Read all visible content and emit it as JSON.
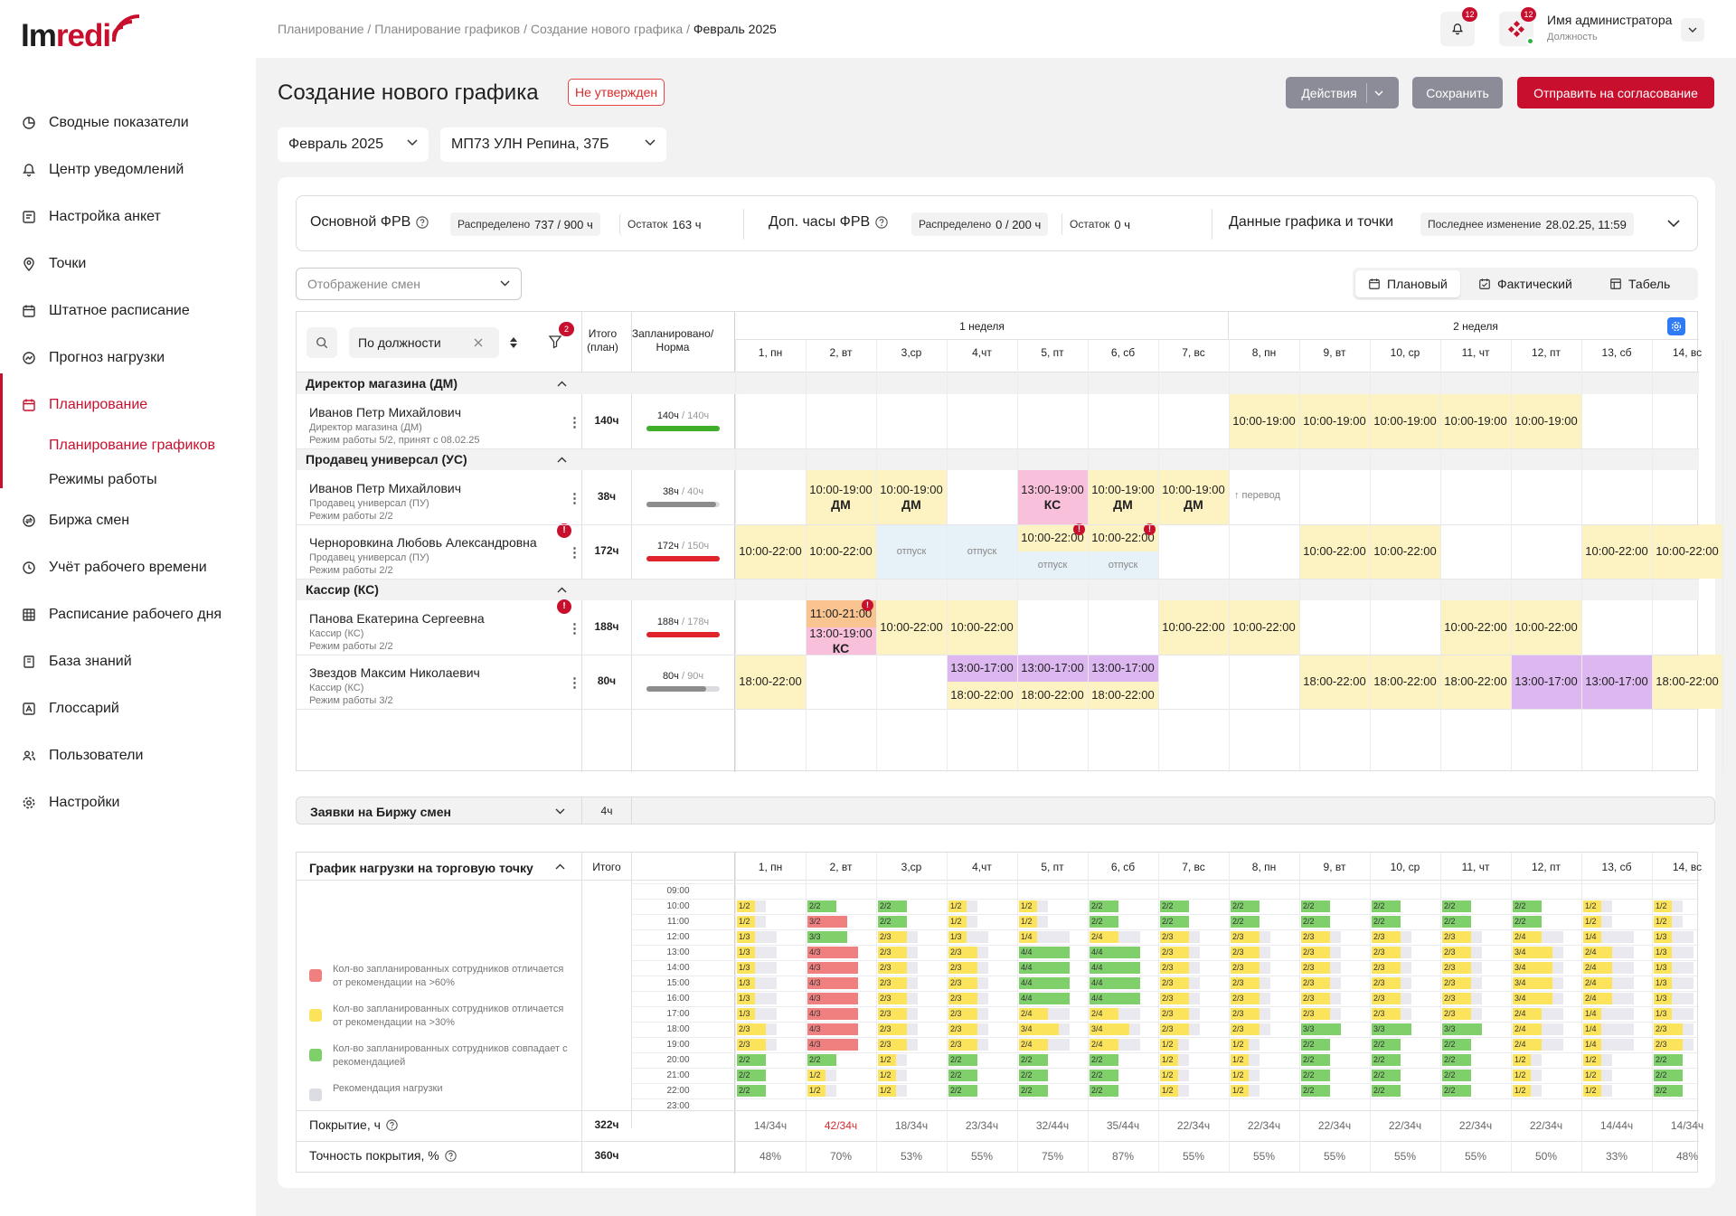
{
  "logo": {
    "text1": "Im",
    "text2": "redi"
  },
  "nav": [
    {
      "label": "Сводные показатели",
      "icon": "chart-pie-icon"
    },
    {
      "label": "Центр уведомлений",
      "icon": "bell-icon"
    },
    {
      "label": "Настройка анкет",
      "icon": "form-settings-icon"
    },
    {
      "label": "Точки",
      "icon": "map-pin-icon"
    },
    {
      "label": "Штатное расписание",
      "icon": "staff-calendar-icon"
    },
    {
      "label": "Прогноз нагрузки",
      "icon": "forecast-icon"
    },
    {
      "label": "Планирование",
      "icon": "calendar-icon",
      "active": true
    }
  ],
  "nav_sub": [
    {
      "label": "Планирование графиков",
      "active": true
    },
    {
      "label": "Режимы работы"
    }
  ],
  "nav2": [
    {
      "label": "Биржа смен",
      "icon": "exchange-icon"
    },
    {
      "label": "Учёт рабочего времени",
      "icon": "clock-history-icon"
    },
    {
      "label": "Расписание рабочего дня",
      "icon": "table-grid-icon"
    },
    {
      "label": "База знаний",
      "icon": "book-icon"
    },
    {
      "label": "Глоссарий",
      "icon": "glossary-icon"
    },
    {
      "label": "Пользователи",
      "icon": "users-icon"
    },
    {
      "label": "Настройки",
      "icon": "gear-icon"
    }
  ],
  "breadcrumbs": [
    "Планирование",
    "Планирование графиков",
    "Создание нового графика"
  ],
  "breadcrumb_current": "Февраль 2025",
  "notifications": "12",
  "user": {
    "name": "Имя администратора",
    "position": "Должность",
    "badge": "12"
  },
  "page": {
    "title": "Создание нового графика",
    "status": "Не утвержден"
  },
  "buttons": {
    "actions": "Действия",
    "save": "Сохранить",
    "send": "Отправить на согласование"
  },
  "month": "Февраль 2025",
  "store": "МП73 УЛН Репина, 37Б",
  "stats": {
    "main_label": "Основной ФРВ",
    "dist_label": "Распределено",
    "main_dist": "737 / 900 ч",
    "rest_label": "Остаток",
    "main_rest": "163 ч",
    "extra_label": "Доп. часы ФРВ",
    "extra_dist": "0 / 200 ч",
    "extra_rest": "0 ч",
    "data_label": "Данные графика и точки",
    "last_change_label": "Последнее изменение",
    "last_change": "28.02.25, 11:59"
  },
  "display_select": "Отображение смен",
  "modes": [
    "Плановый",
    "Фактический",
    "Табель"
  ],
  "filter": {
    "value": "По должности",
    "badge": "2"
  },
  "col_headers": {
    "total": "Итого\n(план)",
    "planned": "Запланировано/\nНорма"
  },
  "weeks": [
    "1 неделя",
    "2 неделя"
  ],
  "days": [
    "1, пн",
    "2, вт",
    "3,ср",
    "4,чт",
    "5, пт",
    "6, сб",
    "7, вс",
    "8, пн",
    "9, вт",
    "10, ср",
    "11, чт",
    "12, пт",
    "13, сб",
    "14, вс"
  ],
  "groups": [
    {
      "title": "Директор магазина (ДМ)",
      "employees": [
        {
          "name": "Иванов Петр Михайлович",
          "role": "Директор магазина (ДМ)",
          "mode": "Режим работы 5/2, принят с 08.02.25",
          "total": "140ч",
          "planned": "140ч",
          "norm": "/ 140ч",
          "fill": 1.0,
          "bar": "#3fae29",
          "alert": false,
          "cells": [
            {
              "d": 7,
              "t": "10:00-19:00",
              "c": "y"
            },
            {
              "d": 8,
              "t": "10:00-19:00",
              "c": "y"
            },
            {
              "d": 9,
              "t": "10:00-19:00",
              "c": "y"
            },
            {
              "d": 10,
              "t": "10:00-19:00",
              "c": "y"
            },
            {
              "d": 11,
              "t": "10:00-19:00",
              "c": "y"
            }
          ]
        }
      ]
    },
    {
      "title": "Продавец универсал (УС)",
      "employees": [
        {
          "name": "Иванов Петр Михайлович",
          "role": "Продавец универсал (ПУ)",
          "mode": "Режим работы 2/2",
          "total": "38ч",
          "planned": "38ч",
          "norm": "/ 40ч",
          "fill": 0.95,
          "bar": "#8c8c8c",
          "alert": false,
          "cells": [
            {
              "d": 1,
              "t": "10:00-19:00",
              "s": "ДМ",
              "c": "y"
            },
            {
              "d": 2,
              "t": "10:00-19:00",
              "s": "ДМ",
              "c": "y"
            },
            {
              "d": 4,
              "t": "13:00-19:00",
              "s": "КС",
              "c": "p"
            },
            {
              "d": 5,
              "t": "10:00-19:00",
              "s": "ДМ",
              "c": "y"
            },
            {
              "d": 6,
              "t": "10:00-19:00",
              "s": "ДМ",
              "c": "y"
            },
            {
              "d": 7,
              "t": "↑ перевод",
              "c": "note"
            }
          ]
        },
        {
          "name": "Черноровкина Любовь Александровна",
          "role": "Продавец универсал (ПУ)",
          "mode": "Режим работы 2/2",
          "total": "172ч",
          "planned": "172ч",
          "norm": "/ 150ч",
          "fill": 1.0,
          "bar": "#e0242b",
          "alert": true,
          "cells": [
            {
              "d": 0,
              "t": "10:00-22:00",
              "c": "y"
            },
            {
              "d": 1,
              "t": "10:00-22:00",
              "c": "y"
            },
            {
              "d": 2,
              "t": "отпуск",
              "c": "b"
            },
            {
              "d": 3,
              "t": "отпуск",
              "c": "b"
            },
            {
              "d": 4,
              "t": "10:00-22:00",
              "s2": "отпуск",
              "c": "split",
              "alert": true
            },
            {
              "d": 5,
              "t": "10:00-22:00",
              "s2": "отпуск",
              "c": "split",
              "alert": true
            },
            {
              "d": 8,
              "t": "10:00-22:00",
              "c": "y"
            },
            {
              "d": 9,
              "t": "10:00-22:00",
              "c": "y"
            },
            {
              "d": 12,
              "t": "10:00-22:00",
              "c": "y"
            },
            {
              "d": 13,
              "t": "10:00-22:00",
              "c": "y"
            }
          ]
        }
      ]
    },
    {
      "title": "Кассир (КС)",
      "employees": [
        {
          "name": "Панова Екатерина Сергеевна",
          "role": "Кассир (КС)",
          "mode": "Режим работы 2/2",
          "total": "188ч",
          "planned": "188ч",
          "norm": "/ 178ч",
          "fill": 1.0,
          "bar": "#e0242b",
          "alert": true,
          "cells": [
            {
              "d": 1,
              "t": "11:00-21:00",
              "t2": "13:00-19:00",
              "s2": "КС",
              "c": "op",
              "alert": true
            },
            {
              "d": 2,
              "t": "10:00-22:00",
              "c": "y"
            },
            {
              "d": 3,
              "t": "10:00-22:00",
              "c": "y"
            },
            {
              "d": 6,
              "t": "10:00-22:00",
              "c": "y"
            },
            {
              "d": 7,
              "t": "10:00-22:00",
              "c": "y"
            },
            {
              "d": 10,
              "t": "10:00-22:00",
              "c": "y"
            },
            {
              "d": 11,
              "t": "10:00-22:00",
              "c": "y"
            }
          ]
        },
        {
          "name": "Звездов Максим Николаевич",
          "role": "Кассир (КС)",
          "mode": "Режим работы 3/2",
          "total": "80ч",
          "planned": "80ч",
          "norm": "/ 90ч",
          "fill": 0.82,
          "bar": "#8c8c8c",
          "alert": false,
          "cells": [
            {
              "d": 0,
              "t": "18:00-22:00",
              "c": "y"
            },
            {
              "d": 3,
              "t": "13:00-17:00",
              "t2": "18:00-22:00",
              "c": "vy"
            },
            {
              "d": 4,
              "t": "13:00-17:00",
              "t2": "18:00-22:00",
              "c": "vy"
            },
            {
              "d": 5,
              "t": "13:00-17:00",
              "t2": "18:00-22:00",
              "c": "vy"
            },
            {
              "d": 8,
              "t": "18:00-22:00",
              "c": "y"
            },
            {
              "d": 9,
              "t": "18:00-22:00",
              "c": "y"
            },
            {
              "d": 10,
              "t": "18:00-22:00",
              "c": "y"
            },
            {
              "d": 11,
              "t": "13:00-17:00",
              "c": "v"
            },
            {
              "d": 12,
              "t": "13:00-17:00",
              "c": "v"
            },
            {
              "d": 13,
              "t": "18:00-22:00",
              "c": "y"
            }
          ]
        }
      ]
    }
  ],
  "exchange": {
    "title": "Заявки на Биржу смен",
    "total": "4ч"
  },
  "load": {
    "title": "График нагрузки на торговую точку",
    "total_label": "Итого",
    "hours": [
      "09:00",
      "10:00",
      "11:00",
      "12:00",
      "13:00",
      "14:00",
      "15:00",
      "16:00",
      "17:00",
      "18:00",
      "19:00",
      "20:00",
      "21:00",
      "22:00",
      "23:00"
    ],
    "legend": [
      {
        "color": "#f08080",
        "text": "Кол-во запланированных сотрудников отличается от рекомендации на >60%"
      },
      {
        "color": "#fce35c",
        "text": "Кол-во запланированных сотрудников отличается от рекомендации на >30%"
      },
      {
        "color": "#7fcf6a",
        "text": "Кол-во запланированных сотрудников совпадает с рекомендацией"
      },
      {
        "color": "#dcdce3",
        "text": "Рекомендация нагрузки"
      }
    ],
    "colors": {
      "r": "#f08080",
      "y": "#fce35c",
      "g": "#7fcf6a"
    },
    "columns": [
      [
        "",
        "1/2y",
        "1/2y",
        "1/3y",
        "1/3y",
        "1/3y",
        "1/3y",
        "1/3y",
        "1/3y",
        "2/3y",
        "2/3y",
        "2/2g",
        "2/2g",
        "2/2g",
        ""
      ],
      [
        "",
        "2/2g",
        "3/2r",
        "3/3g",
        "4/3r",
        "4/3r",
        "4/3r",
        "4/3r",
        "4/3r",
        "4/3r",
        "4/3r",
        "2/2g",
        "1/2y",
        "1/2y",
        ""
      ],
      [
        "",
        "2/2g",
        "2/2g",
        "2/3y",
        "2/3y",
        "2/3y",
        "2/3y",
        "2/3y",
        "2/3y",
        "2/3y",
        "2/3y",
        "1/2y",
        "1/2y",
        "1/2y",
        ""
      ],
      [
        "",
        "1/2y",
        "1/2y",
        "1/3y",
        "2/3y",
        "2/3y",
        "2/3y",
        "2/3y",
        "2/3y",
        "2/3y",
        "2/3y",
        "2/2g",
        "2/2g",
        "2/2g",
        ""
      ],
      [
        "",
        "1/2y",
        "1/2y",
        "1/4y",
        "4/4g",
        "4/4g",
        "4/4g",
        "4/4g",
        "2/4y",
        "3/4y",
        "2/4y",
        "2/2g",
        "2/2g",
        "2/2g",
        ""
      ],
      [
        "",
        "2/2g",
        "2/2g",
        "2/4y",
        "4/4g",
        "4/4g",
        "4/4g",
        "4/4g",
        "2/4y",
        "3/4y",
        "2/4y",
        "2/2g",
        "2/2g",
        "2/2g",
        ""
      ],
      [
        "",
        "2/2g",
        "2/2g",
        "2/3y",
        "2/3y",
        "2/3y",
        "2/3y",
        "2/3y",
        "2/3y",
        "2/3y",
        "1/2y",
        "1/2y",
        "1/2y",
        "1/2y",
        ""
      ],
      [
        "",
        "2/2g",
        "2/2g",
        "2/3y",
        "2/3y",
        "2/3y",
        "2/3y",
        "2/3y",
        "2/3y",
        "2/3y",
        "1/2y",
        "1/2y",
        "1/2y",
        "1/2y",
        ""
      ],
      [
        "",
        "2/2g",
        "2/2g",
        "2/3y",
        "2/3y",
        "2/3y",
        "2/3y",
        "2/3y",
        "2/3y",
        "3/3g",
        "2/2g",
        "2/2g",
        "2/2g",
        "2/2g",
        ""
      ],
      [
        "",
        "2/2g",
        "2/2g",
        "2/3y",
        "2/3y",
        "2/3y",
        "2/3y",
        "2/3y",
        "2/3y",
        "3/3g",
        "2/2g",
        "2/2g",
        "2/2g",
        "2/2g",
        ""
      ],
      [
        "",
        "2/2g",
        "2/2g",
        "2/3y",
        "2/3y",
        "2/3y",
        "2/3y",
        "2/3y",
        "2/3y",
        "3/3g",
        "2/2g",
        "2/2g",
        "2/2g",
        "2/2g",
        ""
      ],
      [
        "",
        "2/2g",
        "2/2g",
        "2/4y",
        "3/4y",
        "3/4y",
        "3/4y",
        "3/4y",
        "2/4y",
        "2/4y",
        "2/4y",
        "1/2y",
        "1/2y",
        "1/2y",
        ""
      ],
      [
        "",
        "1/2y",
        "1/2y",
        "1/4y",
        "2/4y",
        "2/4y",
        "2/4y",
        "2/4y",
        "1/4y",
        "1/4y",
        "1/4y",
        "1/2y",
        "1/2y",
        "1/2y",
        ""
      ],
      [
        "",
        "1/2y",
        "1/2y",
        "1/3y",
        "1/3y",
        "1/3y",
        "1/3y",
        "1/3y",
        "1/3y",
        "2/3y",
        "2/3y",
        "2/2g",
        "2/2g",
        "2/2g",
        ""
      ]
    ],
    "coverage_label": "Покрытие, ч",
    "coverage_total": "322ч",
    "coverage": [
      "14/34ч",
      "42/34ч",
      "18/34ч",
      "23/34ч",
      "32/44ч",
      "35/44ч",
      "22/34ч",
      "22/34ч",
      "22/34ч",
      "22/34ч",
      "22/34ч",
      "22/34ч",
      "14/44ч",
      "14/34ч"
    ],
    "coverage_alert_index": 1,
    "accuracy_label": "Точность покрытия, %",
    "accuracy_total": "360ч",
    "accuracy": [
      "48%",
      "70%",
      "53%",
      "55%",
      "75%",
      "87%",
      "55%",
      "55%",
      "55%",
      "55%",
      "55%",
      "50%",
      "33%",
      "48%"
    ]
  }
}
